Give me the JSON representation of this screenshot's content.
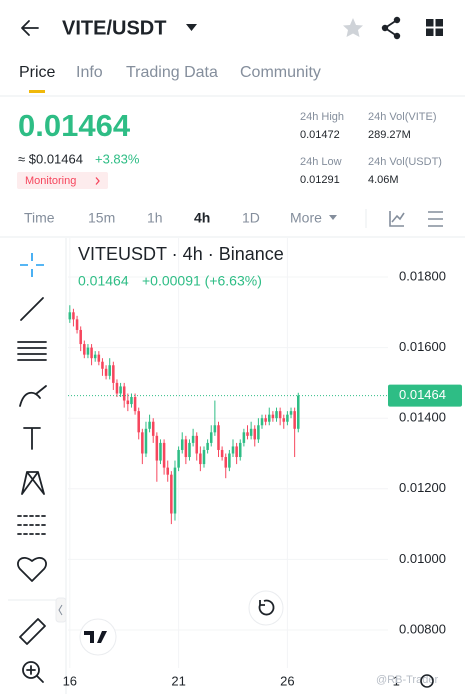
{
  "header": {
    "symbol": "VITE/USDT"
  },
  "tabs": [
    "Price",
    "Info",
    "Trading Data",
    "Community"
  ],
  "price": {
    "last": "0.01464",
    "usd": "≈ $0.01464",
    "change": "+3.83%",
    "badge": "Monitoring"
  },
  "stats": [
    {
      "label": "24h High",
      "value": "0.01472"
    },
    {
      "label": "24h Vol(VITE)",
      "value": "289.27M"
    },
    {
      "label": "24h Low",
      "value": "0.01291"
    },
    {
      "label": "24h Vol(USDT)",
      "value": "4.06M"
    }
  ],
  "intervals": [
    "Time",
    "15m",
    "1h",
    "4h",
    "1D",
    "More"
  ],
  "watermark": "@RB-Trader",
  "chart_data": {
    "type": "candlestick",
    "title": "VITEUSDT · 4h · Binance",
    "legend_price": "0.01464",
    "legend_change": "+0.00091 (+6.63%)",
    "x": [
      0,
      1,
      2,
      3,
      4,
      5,
      6,
      7,
      8,
      9,
      10,
      11,
      12,
      13,
      14,
      15,
      16,
      17,
      18,
      19,
      20,
      21,
      22,
      23,
      24,
      25,
      26,
      27,
      28,
      29,
      30,
      31,
      32,
      33,
      34,
      35,
      36,
      37,
      38,
      39,
      40,
      41,
      42,
      43,
      44,
      45,
      46,
      47,
      48,
      49,
      50,
      51,
      52,
      53,
      54,
      55,
      56,
      57,
      58,
      59,
      60,
      61,
      62,
      63
    ],
    "open": [
      0.0168,
      0.017,
      0.0168,
      0.0165,
      0.0161,
      0.0158,
      0.016,
      0.0157,
      0.0158,
      0.0156,
      0.0154,
      0.0152,
      0.0155,
      0.015,
      0.0147,
      0.0149,
      0.0145,
      0.0144,
      0.0146,
      0.0142,
      0.0136,
      0.013,
      0.0137,
      0.0139,
      0.0135,
      0.0128,
      0.0133,
      0.0126,
      0.0124,
      0.0113,
      0.0126,
      0.0131,
      0.0134,
      0.0129,
      0.0133,
      0.0135,
      0.013,
      0.0127,
      0.0131,
      0.0133,
      0.0136,
      0.0138,
      0.0131,
      0.0129,
      0.0126,
      0.013,
      0.0132,
      0.0129,
      0.0133,
      0.0136,
      0.0135,
      0.0137,
      0.0134,
      0.0138,
      0.014,
      0.0139,
      0.0141,
      0.014,
      0.0142,
      0.014,
      0.0139,
      0.0141,
      0.0142,
      0.0137
    ],
    "high": [
      0.0172,
      0.0171,
      0.0169,
      0.0166,
      0.0162,
      0.0161,
      0.0161,
      0.0159,
      0.0159,
      0.0157,
      0.0155,
      0.0157,
      0.0156,
      0.0151,
      0.015,
      0.015,
      0.0147,
      0.0147,
      0.0147,
      0.0143,
      0.0137,
      0.0139,
      0.0141,
      0.014,
      0.0136,
      0.0134,
      0.0134,
      0.0128,
      0.0125,
      0.0128,
      0.0132,
      0.0136,
      0.0135,
      0.0134,
      0.0137,
      0.0136,
      0.0132,
      0.0132,
      0.0134,
      0.0138,
      0.0145,
      0.0139,
      0.0132,
      0.013,
      0.0131,
      0.0134,
      0.0133,
      0.0134,
      0.0137,
      0.0138,
      0.0139,
      0.0138,
      0.014,
      0.0141,
      0.0141,
      0.0143,
      0.0142,
      0.0143,
      0.0143,
      0.0141,
      0.0142,
      0.0143,
      0.0143,
      0.01472
    ],
    "low": [
      0.0167,
      0.0166,
      0.0164,
      0.0159,
      0.0157,
      0.0157,
      0.0155,
      0.0156,
      0.0155,
      0.0152,
      0.0151,
      0.0151,
      0.0148,
      0.0146,
      0.0146,
      0.0143,
      0.0142,
      0.0143,
      0.0141,
      0.0134,
      0.0127,
      0.0129,
      0.0136,
      0.0133,
      0.0122,
      0.0127,
      0.0124,
      0.0122,
      0.011,
      0.0111,
      0.0125,
      0.013,
      0.0127,
      0.0128,
      0.0132,
      0.0128,
      0.0125,
      0.0126,
      0.013,
      0.0132,
      0.0135,
      0.0129,
      0.0128,
      0.0123,
      0.0125,
      0.0129,
      0.0127,
      0.0128,
      0.0132,
      0.0134,
      0.0134,
      0.0132,
      0.0133,
      0.0137,
      0.0138,
      0.0138,
      0.0139,
      0.0139,
      0.0138,
      0.0137,
      0.0138,
      0.014,
      0.0129,
      0.0136
    ],
    "close": [
      0.017,
      0.0168,
      0.0165,
      0.0161,
      0.0158,
      0.016,
      0.0157,
      0.0158,
      0.0156,
      0.0154,
      0.0152,
      0.0155,
      0.015,
      0.0147,
      0.0149,
      0.0145,
      0.0144,
      0.0146,
      0.0142,
      0.0136,
      0.013,
      0.0137,
      0.0139,
      0.0135,
      0.0128,
      0.0133,
      0.0126,
      0.0124,
      0.0113,
      0.0126,
      0.0131,
      0.0134,
      0.0129,
      0.0133,
      0.0135,
      0.013,
      0.0127,
      0.0131,
      0.0133,
      0.0136,
      0.0138,
      0.0131,
      0.0129,
      0.0126,
      0.013,
      0.0132,
      0.0129,
      0.0133,
      0.0136,
      0.0135,
      0.0137,
      0.0134,
      0.0138,
      0.014,
      0.0139,
      0.0141,
      0.014,
      0.0142,
      0.014,
      0.0139,
      0.0141,
      0.0142,
      0.0137,
      0.01464
    ],
    "current_price": 0.01464,
    "xlim": [
      -0.5,
      90.5
    ],
    "xticks": [
      {
        "value": 0,
        "label": "16"
      },
      {
        "value": 30,
        "label": "21"
      },
      {
        "value": 60,
        "label": "26"
      },
      {
        "value": 90,
        "label": "1"
      }
    ],
    "ylim": [
      0.007,
      0.019
    ],
    "yticks": [
      {
        "value": 0.018,
        "label": "0.01800"
      },
      {
        "value": 0.016,
        "label": "0.01600"
      },
      {
        "value": 0.014,
        "label": "0.01400"
      },
      {
        "value": 0.012,
        "label": "0.01200"
      },
      {
        "value": 0.01,
        "label": "0.01000"
      },
      {
        "value": 0.008,
        "label": "0.00800"
      }
    ],
    "up_color": "#2ebd85",
    "down_color": "#f6465d",
    "grid": true
  }
}
